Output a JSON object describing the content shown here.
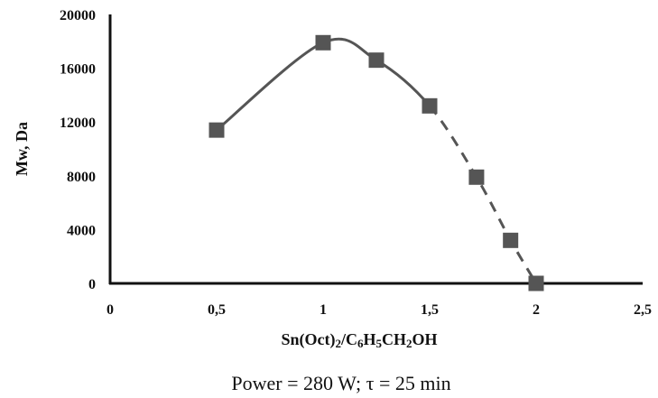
{
  "chart_data": {
    "type": "scatter",
    "title": "",
    "xlabel_parts": [
      {
        "t": "Sn(Oct)",
        "sub": false
      },
      {
        "t": "2",
        "sub": true
      },
      {
        "t": "/C",
        "sub": false
      },
      {
        "t": "6",
        "sub": true
      },
      {
        "t": "H",
        "sub": false
      },
      {
        "t": "5",
        "sub": true
      },
      {
        "t": "CH",
        "sub": false
      },
      {
        "t": "2",
        "sub": true
      },
      {
        "t": "OH",
        "sub": false
      }
    ],
    "ylabel": "Mw, Da",
    "xlim": [
      0,
      2.5
    ],
    "ylim": [
      0,
      20000
    ],
    "x_ticks": [
      0,
      0.5,
      1,
      1.5,
      2,
      2.5
    ],
    "x_tick_labels": [
      "0",
      "0,5",
      "1",
      "1,5",
      "2",
      "2,5"
    ],
    "y_ticks": [
      0,
      4000,
      8000,
      12000,
      16000,
      20000
    ],
    "y_tick_labels": [
      "0",
      "4000",
      "8000",
      "12000",
      "16000",
      "20000"
    ],
    "grid": false,
    "marker_color": "#555555",
    "line_color": "#555555",
    "series": [
      {
        "x": [
          0.5,
          1.0,
          1.25,
          1.5,
          1.72,
          1.88,
          2.0
        ],
        "y": [
          11400,
          17900,
          16600,
          13200,
          7900,
          3200,
          0
        ]
      }
    ],
    "solid_segment_x": [
      0.5,
      1.5
    ],
    "dashed_segment_x": [
      1.5,
      2.0
    ],
    "caption": "Power = 280 W; τ = 25 min"
  }
}
